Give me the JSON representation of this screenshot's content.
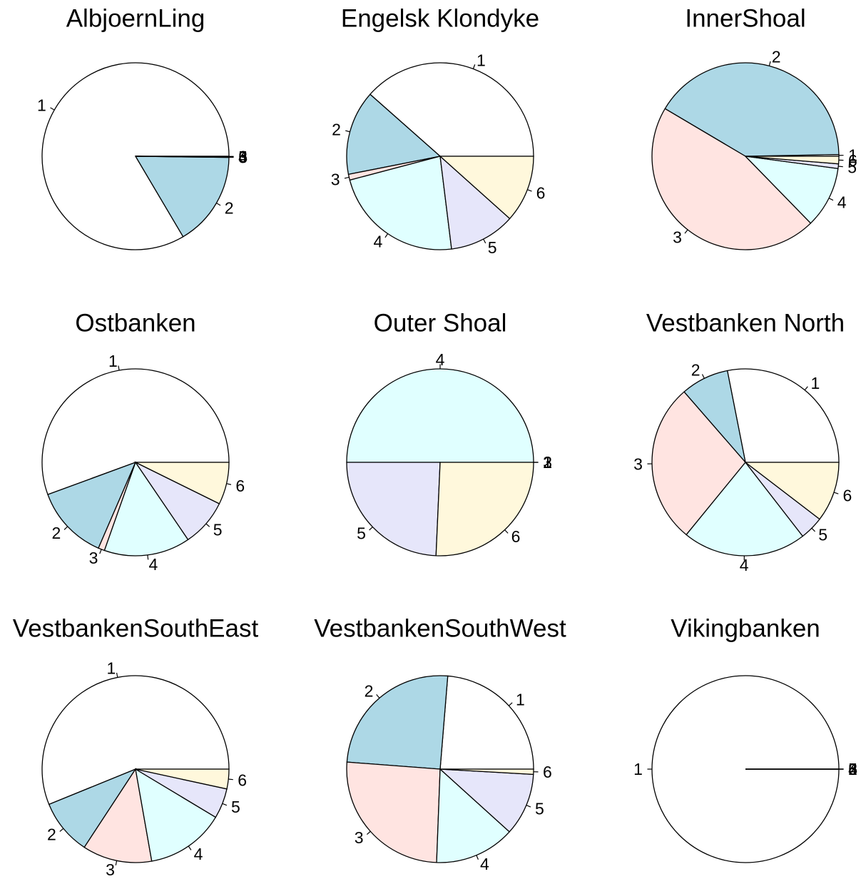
{
  "chart_data": [
    {
      "type": "pie",
      "title": "AlbjoernLing",
      "labels": [
        "1",
        "2",
        "3",
        "4",
        "5",
        "6"
      ],
      "values": [
        83.5,
        16.3,
        0.05,
        0.05,
        0.05,
        0.05
      ],
      "colors": [
        "#ffffff",
        "#add8e6",
        "#ffe4e1",
        "#e0ffff",
        "#e6e6fa",
        "#fff8dc"
      ]
    },
    {
      "type": "pie",
      "title": "Engelsk Klondyke",
      "labels": [
        "1",
        "2",
        "3",
        "4",
        "5",
        "6"
      ],
      "values": [
        38.4,
        14.6,
        1.0,
        22.8,
        11.4,
        11.6
      ],
      "colors": [
        "#ffffff",
        "#add8e6",
        "#ffe4e1",
        "#e0ffff",
        "#e6e6fa",
        "#fff8dc"
      ]
    },
    {
      "type": "pie",
      "title": "InnerShoal",
      "labels": [
        "1",
        "2",
        "3",
        "4",
        "5",
        "6"
      ],
      "values": [
        0.3,
        41.2,
        45.8,
        10.6,
        0.8,
        1.3
      ],
      "colors": [
        "#ffffff",
        "#add8e6",
        "#ffe4e1",
        "#e0ffff",
        "#e6e6fa",
        "#fff8dc"
      ]
    },
    {
      "type": "pie",
      "title": "Ostbanken",
      "labels": [
        "1",
        "2",
        "3",
        "4",
        "5",
        "6"
      ],
      "values": [
        55.6,
        12.9,
        1.1,
        14.9,
        8.2,
        7.3
      ],
      "colors": [
        "#ffffff",
        "#add8e6",
        "#ffe4e1",
        "#e0ffff",
        "#e6e6fa",
        "#fff8dc"
      ]
    },
    {
      "type": "pie",
      "title": "Outer Shoal",
      "labels": [
        "1",
        "2",
        "3",
        "4",
        "5",
        "6"
      ],
      "values": [
        0,
        0,
        0,
        50,
        24.3,
        25.7
      ],
      "colors": [
        "#ffffff",
        "#add8e6",
        "#ffe4e1",
        "#e0ffff",
        "#e6e6fa",
        "#fff8dc"
      ]
    },
    {
      "type": "pie",
      "title": "Vestbanken North",
      "labels": [
        "1",
        "2",
        "3",
        "4",
        "5",
        "6"
      ],
      "values": [
        28.1,
        8.3,
        27.7,
        21.4,
        4.1,
        10.4
      ],
      "colors": [
        "#ffffff",
        "#add8e6",
        "#ffe4e1",
        "#e0ffff",
        "#e6e6fa",
        "#fff8dc"
      ]
    },
    {
      "type": "pie",
      "title": "VestbankenSouthEast",
      "labels": [
        "1",
        "2",
        "3",
        "4",
        "5",
        "6"
      ],
      "values": [
        56.1,
        9.6,
        12.0,
        13.6,
        5.2,
        3.4
      ],
      "colors": [
        "#ffffff",
        "#add8e6",
        "#ffe4e1",
        "#e0ffff",
        "#e6e6fa",
        "#fff8dc"
      ]
    },
    {
      "type": "pie",
      "title": "VestbankenSouthWest",
      "labels": [
        "1",
        "2",
        "3",
        "4",
        "5",
        "6"
      ],
      "values": [
        23.7,
        25.1,
        25.6,
        13.9,
        10.8,
        0.9
      ],
      "colors": [
        "#ffffff",
        "#add8e6",
        "#ffe4e1",
        "#e0ffff",
        "#e6e6fa",
        "#fff8dc"
      ]
    },
    {
      "type": "pie",
      "title": "Vikingbanken",
      "labels": [
        "1",
        "2",
        "3",
        "4",
        "5",
        "6"
      ],
      "values": [
        100,
        0,
        0,
        0,
        0,
        0
      ],
      "colors": [
        "#ffffff",
        "#add8e6",
        "#ffe4e1",
        "#e0ffff",
        "#e6e6fa",
        "#fff8dc"
      ]
    }
  ]
}
